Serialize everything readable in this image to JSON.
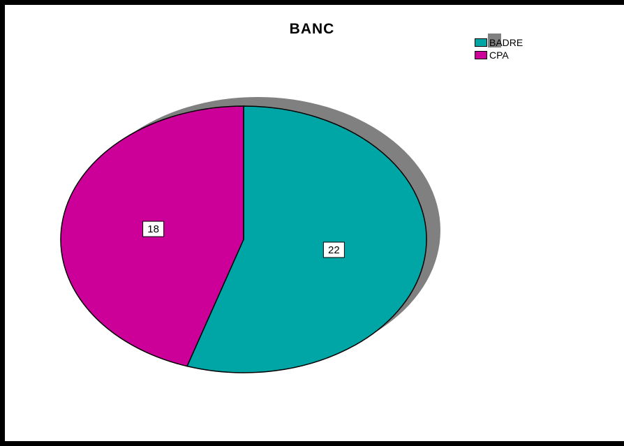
{
  "chart_data": {
    "type": "pie",
    "title": "BANC",
    "categories": [
      "BADRE",
      "CPA"
    ],
    "values": [
      22,
      18
    ],
    "colors": [
      "#00A5A5",
      "#CC0099"
    ],
    "shadow_color": "#808080",
    "legend": {
      "entries": [
        "BADRE",
        "CPA"
      ],
      "placement": "top-right"
    },
    "data_labels": [
      "22",
      "18"
    ]
  }
}
